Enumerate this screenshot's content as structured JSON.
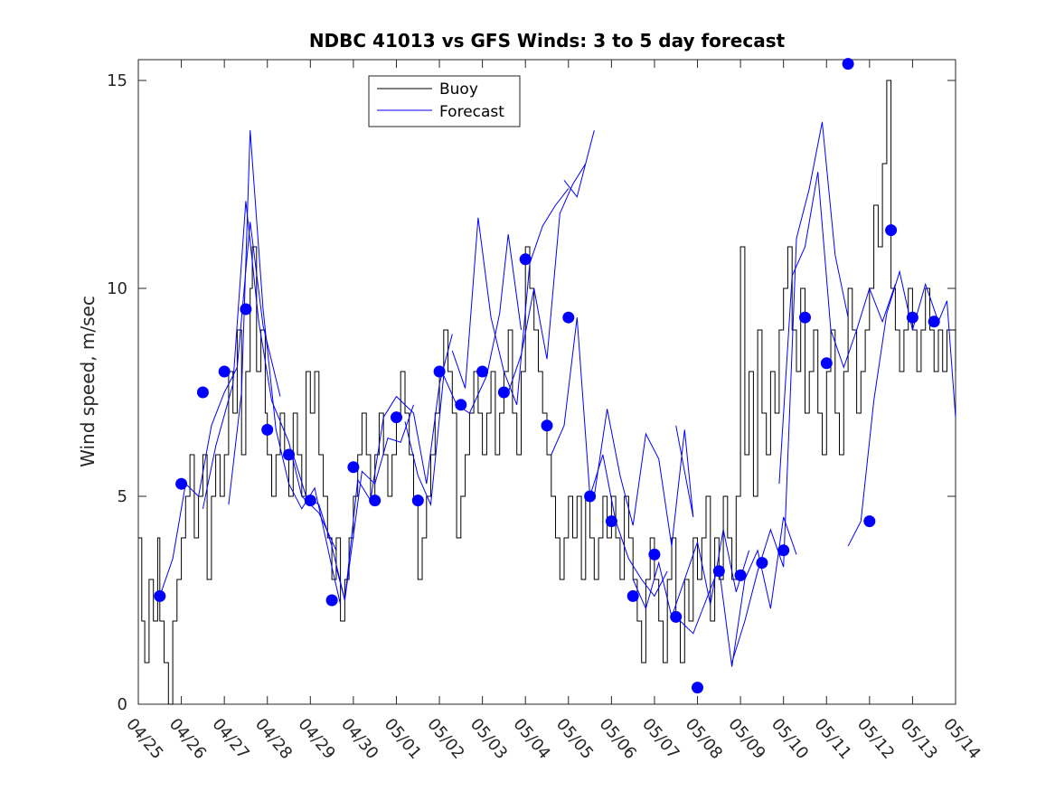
{
  "chart_data": {
    "type": "line",
    "title": "NDBC 41013 vs GFS Winds: 3 to 5 day forecast",
    "xlabel": "",
    "ylabel": "Wind speed, m/sec",
    "xlim": [
      0,
      19
    ],
    "ylim": [
      0,
      15.5
    ],
    "yticks": [
      0,
      5,
      10,
      15
    ],
    "xtick_labels": [
      "04/25",
      "04/26",
      "04/27",
      "04/28",
      "04/29",
      "04/30",
      "05/01",
      "05/02",
      "05/03",
      "05/04",
      "05/05",
      "05/06",
      "05/07",
      "05/08",
      "05/09",
      "05/10",
      "05/11",
      "05/12",
      "05/13",
      "05/14"
    ],
    "grid": false,
    "legend_position": "top-center",
    "colors": {
      "buoy": "#000000",
      "forecast": "#0000ff"
    },
    "legend": [
      {
        "name": "Buoy",
        "color": "#000000"
      },
      {
        "name": "Forecast",
        "color": "#0000ff"
      }
    ],
    "buoy": [
      [
        0.0,
        4
      ],
      [
        0.08,
        2
      ],
      [
        0.15,
        1
      ],
      [
        0.25,
        3
      ],
      [
        0.35,
        2
      ],
      [
        0.45,
        4
      ],
      [
        0.5,
        2
      ],
      [
        0.6,
        1
      ],
      [
        0.7,
        0
      ],
      [
        0.8,
        2
      ],
      [
        0.9,
        3
      ],
      [
        1.0,
        4
      ],
      [
        1.1,
        5
      ],
      [
        1.2,
        6
      ],
      [
        1.3,
        4
      ],
      [
        1.4,
        5
      ],
      [
        1.5,
        6
      ],
      [
        1.6,
        3
      ],
      [
        1.7,
        5
      ],
      [
        1.8,
        6
      ],
      [
        1.9,
        5
      ],
      [
        2.0,
        6
      ],
      [
        2.1,
        8
      ],
      [
        2.2,
        7
      ],
      [
        2.3,
        9
      ],
      [
        2.4,
        6
      ],
      [
        2.5,
        8
      ],
      [
        2.6,
        10
      ],
      [
        2.65,
        11
      ],
      [
        2.75,
        8
      ],
      [
        2.85,
        9
      ],
      [
        2.95,
        7
      ],
      [
        3.0,
        6
      ],
      [
        3.1,
        5
      ],
      [
        3.2,
        6
      ],
      [
        3.3,
        7
      ],
      [
        3.4,
        6
      ],
      [
        3.5,
        5
      ],
      [
        3.6,
        7
      ],
      [
        3.7,
        6
      ],
      [
        3.8,
        5
      ],
      [
        3.9,
        8
      ],
      [
        4.0,
        7
      ],
      [
        4.1,
        8
      ],
      [
        4.2,
        6
      ],
      [
        4.3,
        5
      ],
      [
        4.4,
        4
      ],
      [
        4.5,
        3
      ],
      [
        4.6,
        4
      ],
      [
        4.7,
        2
      ],
      [
        4.8,
        3
      ],
      [
        4.9,
        4
      ],
      [
        5.0,
        5
      ],
      [
        5.1,
        6
      ],
      [
        5.2,
        7
      ],
      [
        5.3,
        6
      ],
      [
        5.4,
        5
      ],
      [
        5.5,
        6
      ],
      [
        5.6,
        7
      ],
      [
        5.7,
        6
      ],
      [
        5.8,
        5
      ],
      [
        5.9,
        6
      ],
      [
        6.0,
        7
      ],
      [
        6.1,
        8
      ],
      [
        6.2,
        7
      ],
      [
        6.3,
        6
      ],
      [
        6.4,
        5
      ],
      [
        6.5,
        3
      ],
      [
        6.6,
        4
      ],
      [
        6.7,
        5
      ],
      [
        6.8,
        6
      ],
      [
        6.9,
        7
      ],
      [
        7.0,
        8
      ],
      [
        7.1,
        9
      ],
      [
        7.2,
        8
      ],
      [
        7.3,
        7
      ],
      [
        7.4,
        4
      ],
      [
        7.5,
        5
      ],
      [
        7.6,
        6
      ],
      [
        7.7,
        7
      ],
      [
        7.8,
        8
      ],
      [
        7.9,
        7
      ],
      [
        8.0,
        6
      ],
      [
        8.1,
        7
      ],
      [
        8.2,
        8
      ],
      [
        8.3,
        6
      ],
      [
        8.4,
        7
      ],
      [
        8.5,
        8
      ],
      [
        8.6,
        9
      ],
      [
        8.7,
        7
      ],
      [
        8.8,
        6
      ],
      [
        8.9,
        8
      ],
      [
        9.0,
        11
      ],
      [
        9.1,
        10
      ],
      [
        9.2,
        9
      ],
      [
        9.3,
        8
      ],
      [
        9.4,
        7
      ],
      [
        9.5,
        6
      ],
      [
        9.6,
        5
      ],
      [
        9.7,
        4
      ],
      [
        9.8,
        3
      ],
      [
        9.9,
        4
      ],
      [
        10.0,
        5
      ],
      [
        10.1,
        4
      ],
      [
        10.2,
        5
      ],
      [
        10.3,
        3
      ],
      [
        10.4,
        5
      ],
      [
        10.5,
        4
      ],
      [
        10.6,
        3
      ],
      [
        10.7,
        4
      ],
      [
        10.8,
        5
      ],
      [
        10.9,
        4
      ],
      [
        11.0,
        5
      ],
      [
        11.1,
        4
      ],
      [
        11.2,
        3
      ],
      [
        11.3,
        5
      ],
      [
        11.4,
        4
      ],
      [
        11.5,
        3
      ],
      [
        11.6,
        2
      ],
      [
        11.7,
        1
      ],
      [
        11.8,
        3
      ],
      [
        11.9,
        4
      ],
      [
        12.0,
        3
      ],
      [
        12.1,
        2
      ],
      [
        12.2,
        1
      ],
      [
        12.3,
        3
      ],
      [
        12.4,
        4
      ],
      [
        12.5,
        2
      ],
      [
        12.6,
        1
      ],
      [
        12.7,
        3
      ],
      [
        12.8,
        2
      ],
      [
        12.9,
        4
      ],
      [
        13.0,
        3
      ],
      [
        13.1,
        4
      ],
      [
        13.2,
        5
      ],
      [
        13.3,
        2
      ],
      [
        13.4,
        4
      ],
      [
        13.5,
        3
      ],
      [
        13.6,
        5
      ],
      [
        13.7,
        4
      ],
      [
        13.8,
        3
      ],
      [
        13.9,
        5
      ],
      [
        14.0,
        11
      ],
      [
        14.1,
        6
      ],
      [
        14.2,
        8
      ],
      [
        14.3,
        5
      ],
      [
        14.4,
        9
      ],
      [
        14.5,
        7
      ],
      [
        14.6,
        6
      ],
      [
        14.7,
        8
      ],
      [
        14.8,
        7
      ],
      [
        14.9,
        9
      ],
      [
        15.0,
        10
      ],
      [
        15.1,
        11
      ],
      [
        15.2,
        9
      ],
      [
        15.3,
        8
      ],
      [
        15.4,
        10
      ],
      [
        15.5,
        7
      ],
      [
        15.6,
        8
      ],
      [
        15.7,
        9
      ],
      [
        15.8,
        7
      ],
      [
        15.9,
        6
      ],
      [
        16.0,
        8
      ],
      [
        16.1,
        9
      ],
      [
        16.2,
        7
      ],
      [
        16.3,
        6
      ],
      [
        16.4,
        8
      ],
      [
        16.5,
        10
      ],
      [
        16.6,
        9
      ],
      [
        16.7,
        7
      ],
      [
        16.8,
        8
      ],
      [
        16.9,
        9
      ],
      [
        17.0,
        10
      ],
      [
        17.1,
        12
      ],
      [
        17.2,
        11
      ],
      [
        17.3,
        13
      ],
      [
        17.4,
        15
      ],
      [
        17.5,
        10
      ],
      [
        17.6,
        9
      ],
      [
        17.7,
        8
      ],
      [
        17.8,
        9
      ],
      [
        17.9,
        10
      ],
      [
        18.0,
        9
      ],
      [
        18.1,
        8
      ],
      [
        18.2,
        9
      ],
      [
        18.3,
        10
      ],
      [
        18.4,
        9
      ],
      [
        18.5,
        8
      ],
      [
        18.6,
        9
      ],
      [
        18.7,
        8
      ],
      [
        18.8,
        9
      ],
      [
        19.0,
        8
      ]
    ],
    "forecast_runs": [
      [
        [
          0.5,
          2.6
        ],
        [
          0.8,
          3.5
        ],
        [
          1.1,
          5.3
        ],
        [
          1.4,
          5.0
        ],
        [
          1.7,
          6.7
        ],
        [
          2.0,
          7.5
        ],
        [
          2.3,
          8.1
        ],
        [
          2.6,
          11.6
        ],
        [
          2.9,
          9.1
        ],
        [
          3.3,
          7.4
        ]
      ],
      [
        [
          1.5,
          4.7
        ],
        [
          1.8,
          6.2
        ],
        [
          2.2,
          7.7
        ],
        [
          2.5,
          12.1
        ],
        [
          2.8,
          9.2
        ],
        [
          3.1,
          7.3
        ],
        [
          3.5,
          6.3
        ],
        [
          3.8,
          5.0
        ],
        [
          4.2,
          4.6
        ],
        [
          4.6,
          3.7
        ]
      ],
      [
        [
          2.1,
          4.8
        ],
        [
          2.4,
          7.5
        ],
        [
          2.6,
          13.8
        ],
        [
          2.9,
          9.5
        ],
        [
          3.2,
          6.6
        ],
        [
          3.5,
          5.3
        ],
        [
          3.8,
          4.7
        ],
        [
          4.1,
          5.2
        ],
        [
          4.5,
          3.3
        ],
        [
          4.7,
          2.4
        ]
      ],
      [
        [
          3.6,
          6.0
        ],
        [
          3.9,
          5.0
        ],
        [
          4.2,
          4.8
        ],
        [
          4.5,
          3.8
        ],
        [
          4.8,
          2.5
        ],
        [
          5.2,
          5.6
        ],
        [
          5.5,
          5.3
        ],
        [
          5.8,
          6.4
        ],
        [
          6.1,
          6.3
        ],
        [
          6.4,
          7.2
        ]
      ],
      [
        [
          4.6,
          3.3
        ],
        [
          4.8,
          2.5
        ],
        [
          5.1,
          5.4
        ],
        [
          5.4,
          4.9
        ],
        [
          5.7,
          6.9
        ],
        [
          6.0,
          7.4
        ],
        [
          6.4,
          7.0
        ],
        [
          6.7,
          5.3
        ],
        [
          7.0,
          7.7
        ],
        [
          7.3,
          8.9
        ]
      ],
      [
        [
          6.2,
          6.8
        ],
        [
          6.5,
          5.5
        ],
        [
          6.8,
          4.8
        ],
        [
          7.1,
          7.9
        ],
        [
          7.4,
          7.2
        ],
        [
          7.7,
          7.0
        ],
        [
          8.1,
          7.9
        ],
        [
          8.4,
          9.4
        ],
        [
          8.6,
          11.3
        ],
        [
          8.9,
          9.0
        ]
      ],
      [
        [
          7.3,
          8.5
        ],
        [
          7.6,
          7.6
        ],
        [
          7.9,
          11.7
        ],
        [
          8.2,
          9.3
        ],
        [
          8.5,
          8.0
        ],
        [
          8.8,
          7.2
        ],
        [
          9.1,
          10.6
        ],
        [
          9.4,
          11.5
        ],
        [
          9.7,
          12.0
        ],
        [
          10.0,
          12.4
        ]
      ],
      [
        [
          8.6,
          7.5
        ],
        [
          8.9,
          8.4
        ],
        [
          9.2,
          10.0
        ],
        [
          9.5,
          8.3
        ],
        [
          9.8,
          11.8
        ],
        [
          10.1,
          12.5
        ],
        [
          10.4,
          13.0
        ],
        [
          10.6,
          13.8
        ],
        [
          10.2,
          12.2
        ],
        [
          9.9,
          12.6
        ]
      ],
      [
        [
          9.6,
          6.0
        ],
        [
          9.9,
          6.7
        ],
        [
          10.2,
          9.3
        ],
        [
          10.5,
          5.0
        ],
        [
          10.8,
          6.0
        ],
        [
          11.1,
          4.4
        ],
        [
          11.4,
          3.5
        ],
        [
          11.7,
          3.0
        ],
        [
          12.0,
          2.6
        ],
        [
          12.3,
          3.2
        ]
      ],
      [
        [
          10.6,
          5.0
        ],
        [
          10.9,
          7.1
        ],
        [
          11.2,
          5.5
        ],
        [
          11.5,
          4.3
        ],
        [
          11.8,
          6.5
        ],
        [
          12.1,
          5.9
        ],
        [
          12.4,
          3.8
        ],
        [
          12.7,
          6.6
        ],
        [
          12.9,
          4.5
        ],
        [
          12.5,
          6.7
        ]
      ],
      [
        [
          11.5,
          3.0
        ],
        [
          11.8,
          2.3
        ],
        [
          12.1,
          3.4
        ],
        [
          12.4,
          2.1
        ],
        [
          12.7,
          3.0
        ],
        [
          13.0,
          3.9
        ],
        [
          13.3,
          2.4
        ],
        [
          13.6,
          4.2
        ],
        [
          13.9,
          2.7
        ],
        [
          14.2,
          3.7
        ]
      ],
      [
        [
          12.6,
          2.0
        ],
        [
          12.9,
          1.7
        ],
        [
          13.2,
          2.5
        ],
        [
          13.5,
          3.3
        ],
        [
          13.8,
          0.9
        ],
        [
          14.1,
          3.0
        ],
        [
          14.4,
          3.7
        ],
        [
          14.7,
          2.3
        ],
        [
          15.0,
          4.5
        ],
        [
          15.3,
          3.6
        ]
      ],
      [
        [
          13.8,
          1.0
        ],
        [
          14.1,
          2.0
        ],
        [
          14.4,
          3.2
        ],
        [
          14.7,
          4.2
        ],
        [
          15.0,
          3.3
        ],
        [
          15.3,
          11.2
        ],
        [
          15.6,
          12.4
        ],
        [
          15.9,
          14.0
        ],
        [
          16.2,
          10.8
        ],
        [
          16.5,
          9.3
        ]
      ],
      [
        [
          14.9,
          5.3
        ],
        [
          15.2,
          10.3
        ],
        [
          15.5,
          11.0
        ],
        [
          15.8,
          12.8
        ],
        [
          16.1,
          9.0
        ],
        [
          16.4,
          8.1
        ],
        [
          16.7,
          9.0
        ],
        [
          17.0,
          10.0
        ],
        [
          17.3,
          9.2
        ],
        [
          17.6,
          10.1
        ]
      ],
      [
        [
          16.5,
          3.8
        ],
        [
          16.8,
          4.4
        ],
        [
          17.1,
          7.3
        ],
        [
          17.4,
          9.4
        ],
        [
          17.7,
          10.4
        ],
        [
          18.0,
          9.0
        ],
        [
          18.3,
          10.1
        ],
        [
          18.6,
          9.2
        ],
        [
          18.8,
          9.7
        ],
        [
          19.0,
          6.9
        ]
      ]
    ],
    "markers": [
      [
        0.5,
        2.6
      ],
      [
        1.0,
        5.3
      ],
      [
        1.5,
        7.5
      ],
      [
        2.0,
        8.0
      ],
      [
        2.5,
        9.5
      ],
      [
        3.0,
        6.6
      ],
      [
        3.5,
        6.0
      ],
      [
        4.0,
        4.9
      ],
      [
        4.5,
        2.5
      ],
      [
        5.0,
        5.7
      ],
      [
        5.5,
        4.9
      ],
      [
        6.0,
        6.9
      ],
      [
        6.5,
        4.9
      ],
      [
        7.0,
        8.0
      ],
      [
        7.5,
        7.2
      ],
      [
        8.0,
        8.0
      ],
      [
        8.5,
        7.5
      ],
      [
        9.0,
        10.7
      ],
      [
        9.5,
        6.7
      ],
      [
        10.0,
        9.3
      ],
      [
        10.5,
        5.0
      ],
      [
        11.0,
        4.4
      ],
      [
        11.5,
        2.6
      ],
      [
        12.0,
        3.6
      ],
      [
        12.5,
        2.1
      ],
      [
        13.0,
        0.4
      ],
      [
        13.5,
        3.2
      ],
      [
        14.0,
        3.1
      ],
      [
        14.5,
        3.4
      ],
      [
        15.0,
        3.7
      ],
      [
        15.5,
        9.3
      ],
      [
        16.0,
        8.2
      ],
      [
        16.5,
        15.4
      ],
      [
        17.0,
        4.4
      ],
      [
        17.5,
        11.4
      ],
      [
        18.0,
        9.3
      ],
      [
        18.5,
        9.2
      ]
    ]
  }
}
